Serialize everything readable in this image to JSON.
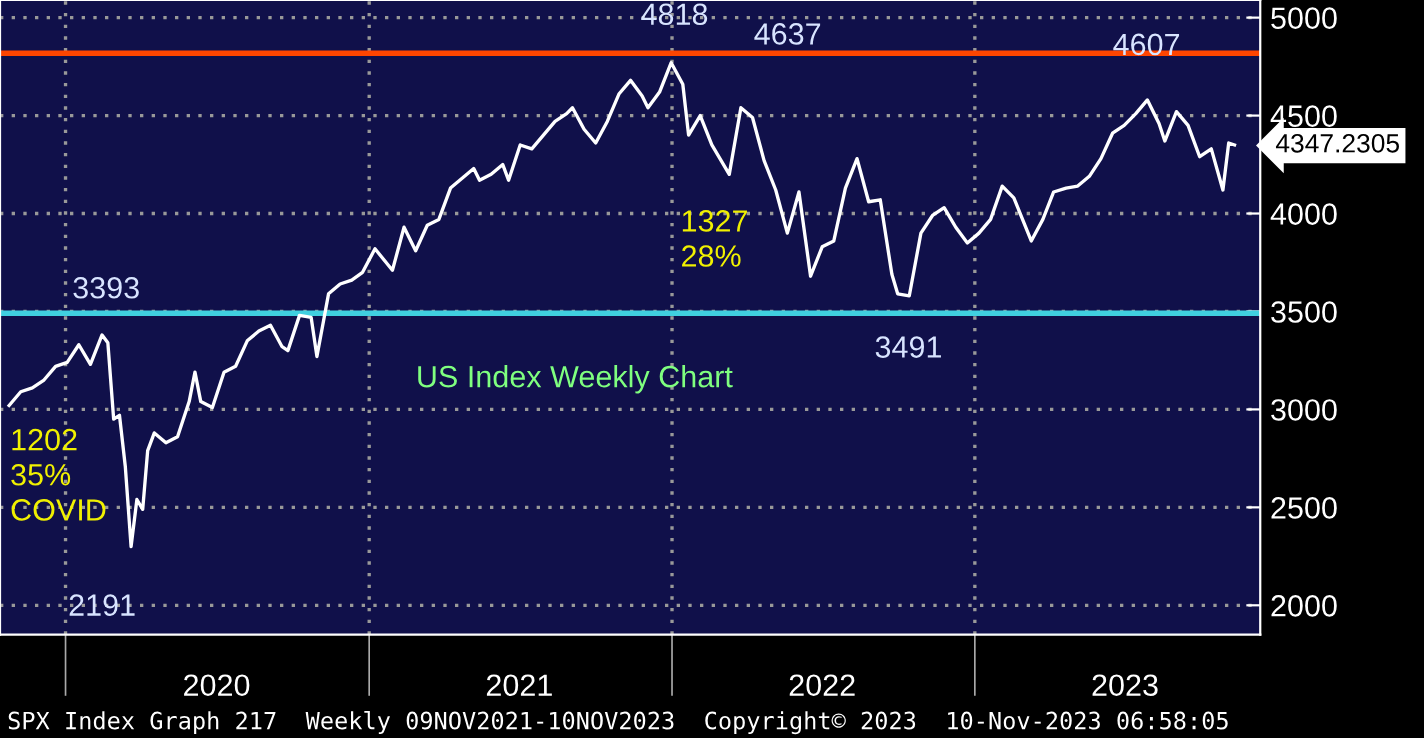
{
  "chart_data": {
    "type": "line",
    "x": [
      "2019-10-25",
      "2019-11-08",
      "2019-11-22",
      "2019-12-06",
      "2019-12-20",
      "2020-01-03",
      "2020-01-17",
      "2020-01-31",
      "2020-02-14",
      "2020-02-21",
      "2020-02-28",
      "2020-03-06",
      "2020-03-13",
      "2020-03-20",
      "2020-03-27",
      "2020-04-03",
      "2020-04-09",
      "2020-04-17",
      "2020-05-01",
      "2020-05-15",
      "2020-05-29",
      "2020-06-05",
      "2020-06-12",
      "2020-06-26",
      "2020-07-10",
      "2020-07-24",
      "2020-08-07",
      "2020-08-21",
      "2020-09-04",
      "2020-09-18",
      "2020-09-25",
      "2020-10-09",
      "2020-10-23",
      "2020-10-30",
      "2020-11-13",
      "2020-11-27",
      "2020-12-11",
      "2020-12-24",
      "2021-01-08",
      "2021-01-29",
      "2021-02-12",
      "2021-02-26",
      "2021-03-12",
      "2021-03-26",
      "2021-04-09",
      "2021-04-23",
      "2021-05-07",
      "2021-05-14",
      "2021-05-28",
      "2021-06-11",
      "2021-06-18",
      "2021-07-02",
      "2021-07-16",
      "2021-07-30",
      "2021-08-13",
      "2021-08-27",
      "2021-09-03",
      "2021-09-17",
      "2021-10-01",
      "2021-10-15",
      "2021-10-29",
      "2021-11-12",
      "2021-11-26",
      "2021-12-03",
      "2021-12-17",
      "2021-12-31",
      "2022-01-14",
      "2022-01-21",
      "2022-02-04",
      "2022-02-18",
      "2022-03-11",
      "2022-03-25",
      "2022-04-08",
      "2022-04-22",
      "2022-05-06",
      "2022-05-20",
      "2022-06-03",
      "2022-06-17",
      "2022-07-01",
      "2022-07-15",
      "2022-07-29",
      "2022-08-12",
      "2022-08-26",
      "2022-09-09",
      "2022-09-23",
      "2022-09-30",
      "2022-10-14",
      "2022-10-28",
      "2022-11-11",
      "2022-11-25",
      "2022-12-09",
      "2022-12-23",
      "2023-01-06",
      "2023-01-20",
      "2023-02-03",
      "2023-02-17",
      "2023-03-10",
      "2023-03-24",
      "2023-04-06",
      "2023-04-21",
      "2023-05-05",
      "2023-05-19",
      "2023-06-02",
      "2023-06-16",
      "2023-06-30",
      "2023-07-14",
      "2023-07-28",
      "2023-08-11",
      "2023-08-18",
      "2023-09-01",
      "2023-09-15",
      "2023-09-29",
      "2023-10-13",
      "2023-10-27",
      "2023-11-03",
      "2023-11-10"
    ],
    "series": [
      {
        "color": "#ffffff",
        "values": [
          3020,
          3090,
          3110,
          3150,
          3220,
          3240,
          3330,
          3230,
          3380,
          3340,
          2950,
          2970,
          2710,
          2300,
          2540,
          2490,
          2790,
          2880,
          2830,
          2860,
          3040,
          3190,
          3040,
          3010,
          3190,
          3220,
          3350,
          3400,
          3430,
          3320,
          3300,
          3480,
          3470,
          3270,
          3590,
          3640,
          3660,
          3700,
          3820,
          3710,
          3930,
          3810,
          3940,
          3970,
          4130,
          4180,
          4230,
          4170,
          4200,
          4250,
          4170,
          4350,
          4330,
          4400,
          4470,
          4510,
          4540,
          4430,
          4360,
          4470,
          4610,
          4680,
          4600,
          4540,
          4620,
          4770,
          4660,
          4400,
          4500,
          4350,
          4200,
          4540,
          4490,
          4270,
          4120,
          3900,
          4110,
          3680,
          3830,
          3860,
          4130,
          4280,
          4060,
          4070,
          3690,
          3590,
          3580,
          3900,
          3990,
          4030,
          3930,
          3850,
          3900,
          3970,
          4140,
          4080,
          3860,
          3970,
          4110,
          4130,
          4140,
          4190,
          4280,
          4410,
          4450,
          4510,
          4580,
          4460,
          4370,
          4520,
          4450,
          4290,
          4330,
          4120,
          4360,
          4350
        ]
      }
    ],
    "xlim": [
      "2019-10-14",
      "2023-12-11"
    ],
    "xticks": [
      {
        "value": "2020-01-01",
        "label": null
      },
      {
        "value": "2020-07-01",
        "label": "2020"
      },
      {
        "value": "2021-01-01",
        "label": null
      },
      {
        "value": "2021-07-01",
        "label": "2021"
      },
      {
        "value": "2022-01-01",
        "label": null
      },
      {
        "value": "2022-07-01",
        "label": "2022"
      },
      {
        "value": "2023-01-01",
        "label": null
      },
      {
        "value": "2023-07-01",
        "label": "2023"
      }
    ],
    "ylim": [
      1850,
      5090
    ],
    "yticks": [
      2000,
      2500,
      3000,
      3500,
      4000,
      4500,
      5000
    ],
    "grid": true,
    "marker": "none",
    "line_style": "solid",
    "ref_lines": [
      {
        "axis": "y",
        "value": 4818,
        "color": "#ff4500",
        "label": null
      },
      {
        "axis": "y",
        "value": 3491,
        "color": "#40d0e0",
        "label": null
      }
    ],
    "annotations": [
      {
        "text": "4818",
        "x": "2022-01-04",
        "y": 4818
      },
      {
        "text": "4607",
        "x": "2023-07-27",
        "y": 4607
      },
      {
        "text": "3491",
        "x": "2022-10-13",
        "y": 3491
      },
      {
        "text": "3393",
        "x": "2020-02-19",
        "y": 3393
      },
      {
        "text": "4347.2305",
        "x": "2023-11-10",
        "y": 4347
      },
      "4637",
      "2191",
      "1202\n35%\nCOVID",
      "1327\n28%",
      "US Index Weekly Chart",
      "SPX Index Graph 217  Weekly 09NOV2021-10NOV2023  Copyright© 2023  10-Nov-2023 06:58:05"
    ]
  }
}
